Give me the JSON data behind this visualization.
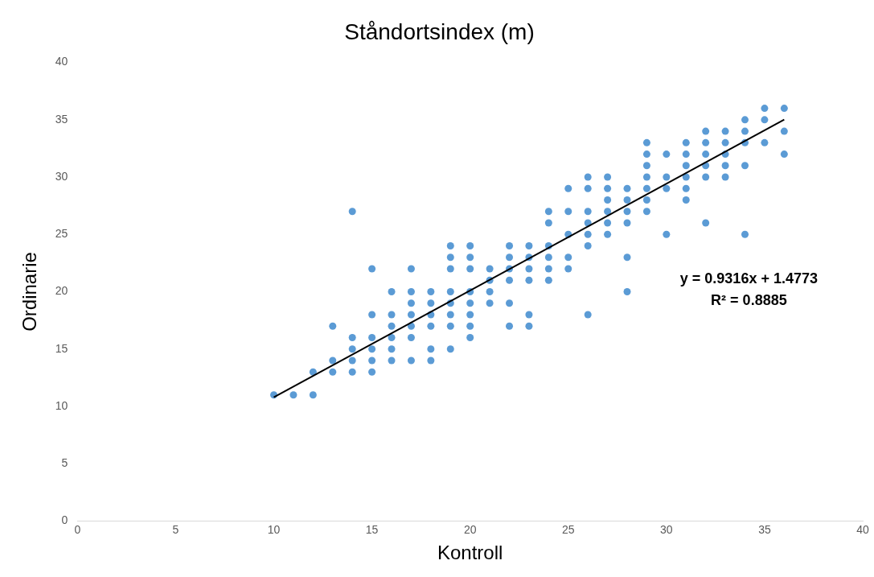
{
  "chart_data": {
    "type": "scatter",
    "title": "Ståndortsindex (m)",
    "xlabel": "Kontroll",
    "ylabel": "Ordinarie",
    "xlim": [
      0,
      40
    ],
    "xticks": [
      0,
      5,
      10,
      15,
      20,
      25,
      30,
      35,
      40
    ],
    "ylim": [
      0,
      40
    ],
    "yticks": [
      0,
      5,
      10,
      15,
      20,
      25,
      30,
      35,
      40
    ],
    "grid": false,
    "legend": false,
    "marker": "circle",
    "series": [
      {
        "color": "#5b9bd5",
        "x": [
          10,
          11,
          12,
          12,
          13,
          13,
          13,
          14,
          14,
          14,
          14,
          14,
          15,
          15,
          15,
          15,
          15,
          15,
          16,
          16,
          16,
          16,
          16,
          16,
          17,
          17,
          17,
          17,
          17,
          17,
          17,
          18,
          18,
          18,
          18,
          18,
          18,
          19,
          19,
          19,
          19,
          19,
          19,
          19,
          19,
          20,
          20,
          20,
          20,
          20,
          20,
          20,
          20,
          21,
          21,
          21,
          21,
          22,
          22,
          22,
          22,
          22,
          22,
          23,
          23,
          23,
          23,
          23,
          23,
          24,
          24,
          24,
          24,
          24,
          24,
          25,
          25,
          25,
          25,
          25,
          26,
          26,
          26,
          26,
          26,
          26,
          26,
          27,
          27,
          27,
          27,
          27,
          27,
          28,
          28,
          28,
          28,
          28,
          28,
          29,
          29,
          29,
          29,
          29,
          29,
          29,
          30,
          30,
          30,
          30,
          31,
          31,
          31,
          31,
          31,
          31,
          32,
          32,
          32,
          32,
          32,
          32,
          33,
          33,
          33,
          33,
          33,
          34,
          34,
          34,
          34,
          34,
          35,
          35,
          35,
          36,
          36,
          36
        ],
        "values": [
          11,
          11,
          11,
          13,
          13,
          14,
          17,
          13,
          14,
          15,
          16,
          27,
          13,
          14,
          15,
          16,
          18,
          22,
          14,
          15,
          16,
          17,
          18,
          20,
          14,
          16,
          17,
          18,
          19,
          20,
          22,
          14,
          15,
          17,
          18,
          19,
          20,
          15,
          17,
          18,
          19,
          20,
          22,
          23,
          24,
          16,
          17,
          18,
          19,
          20,
          22,
          23,
          24,
          19,
          20,
          21,
          22,
          17,
          19,
          21,
          22,
          23,
          24,
          17,
          18,
          21,
          22,
          23,
          24,
          21,
          22,
          23,
          24,
          26,
          27,
          22,
          23,
          25,
          27,
          29,
          18,
          24,
          25,
          26,
          27,
          29,
          30,
          25,
          26,
          27,
          28,
          29,
          30,
          20,
          23,
          26,
          27,
          28,
          29,
          27,
          28,
          29,
          30,
          31,
          32,
          33,
          25,
          29,
          30,
          32,
          28,
          29,
          30,
          31,
          32,
          33,
          26,
          30,
          31,
          32,
          33,
          34,
          30,
          31,
          32,
          33,
          34,
          25,
          31,
          33,
          34,
          35,
          33,
          35,
          36,
          32,
          34,
          36
        ]
      },
      {
        "type": "line",
        "color": "#000000",
        "marker": "none",
        "line_style": "solid",
        "x": [
          10,
          36
        ],
        "values": [
          10.79,
          35.01
        ]
      }
    ],
    "annotations": [
      "y = 0.9316x + 1.4773",
      "R² = 0.8885"
    ]
  }
}
